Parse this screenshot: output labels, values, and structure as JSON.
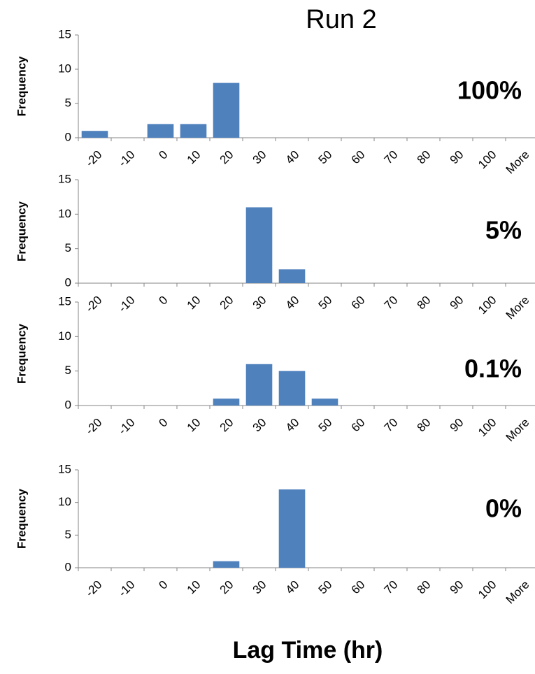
{
  "title": "Run 2",
  "x_label": "Lag Time (hr)",
  "chart_data": [
    {
      "type": "bar",
      "annotation": "100%",
      "y_label": "Frequency",
      "color": "#4f81bd",
      "categories": [
        "-20",
        "-10",
        "0",
        "10",
        "20",
        "30",
        "40",
        "50",
        "60",
        "70",
        "80",
        "90",
        "100",
        "More"
      ],
      "values": [
        1,
        0,
        2,
        2,
        8,
        0,
        0,
        0,
        0,
        0,
        0,
        0,
        0,
        0
      ],
      "ylim": [
        0,
        15
      ],
      "yticks": [
        0,
        5,
        10,
        15
      ]
    },
    {
      "type": "bar",
      "annotation": "5%",
      "y_label": "Frequency",
      "color": "#4f81bd",
      "categories": [
        "-20",
        "-10",
        "0",
        "10",
        "20",
        "30",
        "40",
        "50",
        "60",
        "70",
        "80",
        "90",
        "100",
        "More"
      ],
      "values": [
        0,
        0,
        0,
        0,
        0,
        11,
        2,
        0,
        0,
        0,
        0,
        0,
        0,
        0
      ],
      "ylim": [
        0,
        15
      ],
      "yticks": [
        0,
        5,
        10,
        15
      ]
    },
    {
      "type": "bar",
      "annotation": "0.1%",
      "y_label": "Frequency",
      "color": "#4f81bd",
      "categories": [
        "-20",
        "-10",
        "0",
        "10",
        "20",
        "30",
        "40",
        "50",
        "60",
        "70",
        "80",
        "90",
        "100",
        "More"
      ],
      "values": [
        0,
        0,
        0,
        0,
        1,
        6,
        5,
        1,
        0,
        0,
        0,
        0,
        0,
        0
      ],
      "ylim": [
        0,
        15
      ],
      "yticks": [
        0,
        5,
        10,
        15
      ]
    },
    {
      "type": "bar",
      "annotation": "0%",
      "y_label": "Frequency",
      "color": "#4f81bd",
      "categories": [
        "-20",
        "-10",
        "0",
        "10",
        "20",
        "30",
        "40",
        "50",
        "60",
        "70",
        "80",
        "90",
        "100",
        "More"
      ],
      "values": [
        0,
        0,
        0,
        0,
        1,
        0,
        12,
        0,
        0,
        0,
        0,
        0,
        0,
        0
      ],
      "ylim": [
        0,
        15
      ],
      "yticks": [
        0,
        5,
        10,
        15
      ]
    }
  ]
}
